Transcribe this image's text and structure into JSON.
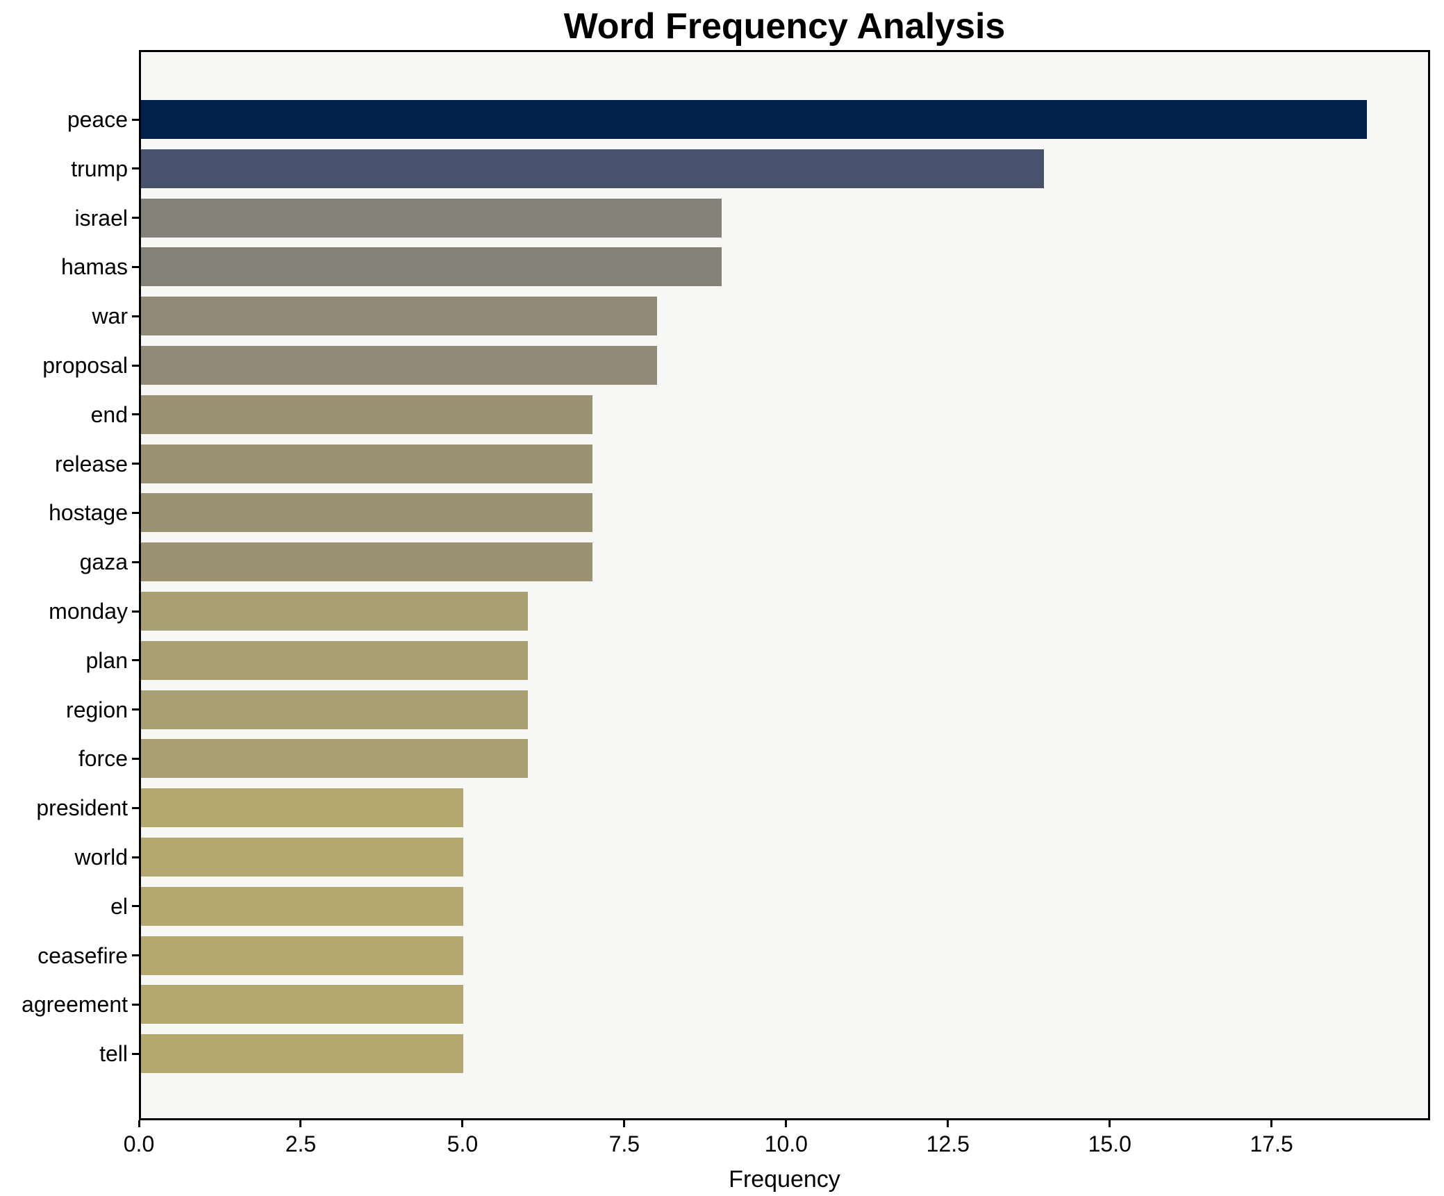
{
  "chart_data": {
    "type": "bar",
    "orientation": "horizontal",
    "title": "Word Frequency Analysis",
    "xlabel": "Frequency",
    "ylabel": "",
    "categories": [
      "peace",
      "trump",
      "israel",
      "hamas",
      "war",
      "proposal",
      "end",
      "release",
      "hostage",
      "gaza",
      "monday",
      "plan",
      "region",
      "force",
      "president",
      "world",
      "el",
      "ceasefire",
      "agreement",
      "tell"
    ],
    "values": [
      19,
      14,
      9,
      9,
      8,
      8,
      7,
      7,
      7,
      7,
      6,
      6,
      6,
      6,
      5,
      5,
      5,
      5,
      5,
      5
    ],
    "bar_colors": [
      "#02224e",
      "#48526d",
      "#838178",
      "#838178",
      "#908a76",
      "#908a76",
      "#9a9271",
      "#9a9271",
      "#9a9271",
      "#9a9271",
      "#a89f72",
      "#a89f72",
      "#a89f72",
      "#a89f72",
      "#b3a96f",
      "#b3a96f",
      "#b3a96f",
      "#b3a96f",
      "#b3a96f",
      "#b3a96f"
    ],
    "xlim": [
      0,
      19.95
    ],
    "x_ticks": [
      0,
      2.5,
      5,
      7.5,
      10,
      12.5,
      15,
      17.5
    ],
    "x_tick_labels": [
      "0.0",
      "2.5",
      "5.0",
      "7.5",
      "10.0",
      "12.5",
      "15.0",
      "17.5"
    ],
    "grid": false,
    "legend": null,
    "colors": {
      "figure_bg": "#ffffff",
      "plot_bg": "#f7f7f5",
      "spine": "#000000",
      "text": "#000000"
    }
  }
}
